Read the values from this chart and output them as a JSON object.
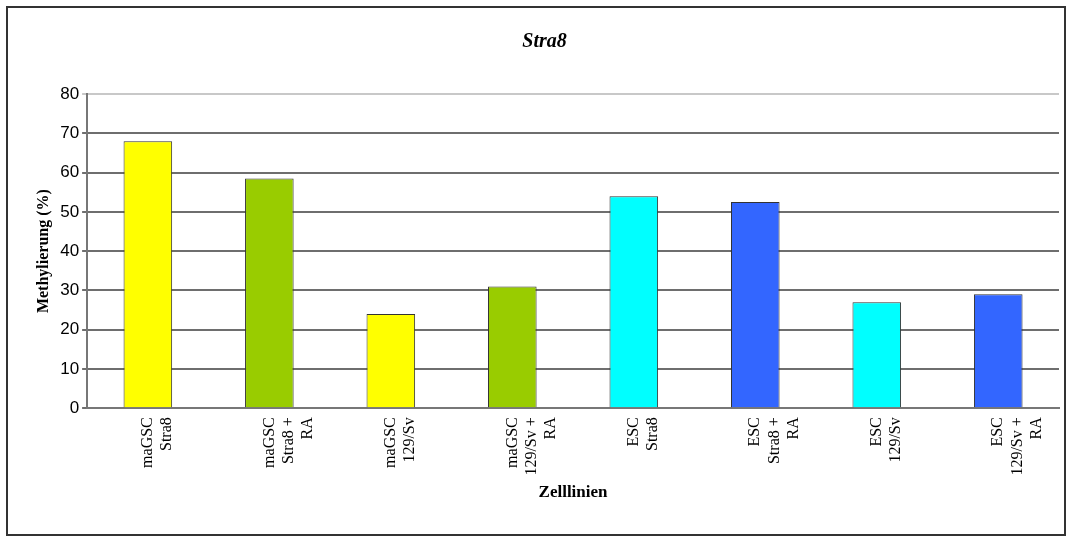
{
  "chart_data": {
    "type": "bar",
    "title": "Stra8",
    "xlabel": "Zelllinien",
    "ylabel": "Methylierung (%)",
    "categories": [
      "maGSC Stra8",
      "maGSC Stra8 + RA",
      "maGSC 129/Sv",
      "maGSC 129/Sv + RA",
      "ESC Stra8",
      "ESC Stra8 + RA",
      "ESC 129/Sv",
      "ESC 129/Sv + RA"
    ],
    "values": [
      68,
      58.5,
      24,
      31,
      54,
      52.5,
      27,
      29
    ],
    "colors": [
      "#ffff00",
      "#99cc00",
      "#ffff00",
      "#99cc00",
      "#00ffff",
      "#3366ff",
      "#00ffff",
      "#3366ff"
    ],
    "ylim": [
      0,
      80
    ],
    "yticks": [
      0,
      10,
      20,
      30,
      40,
      50,
      60,
      70,
      80
    ],
    "grid": "y",
    "legend": false
  }
}
